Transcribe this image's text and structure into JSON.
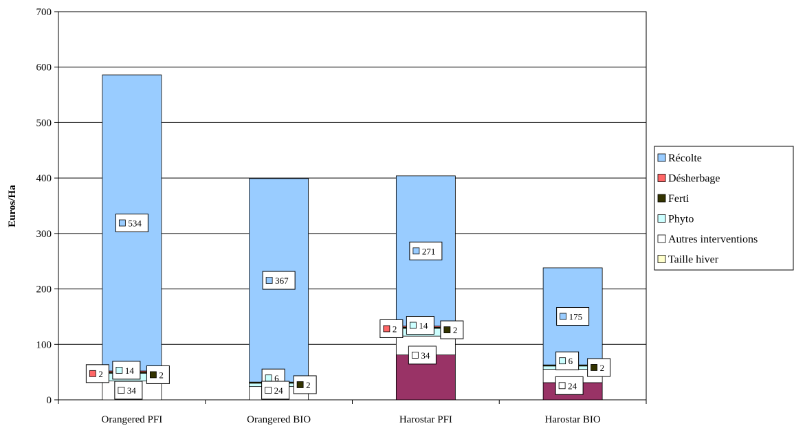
{
  "chart_data": {
    "type": "bar",
    "stacked": true,
    "categories": [
      "Orangered PFI",
      "Orangered BIO",
      "Harostar PFI",
      "Harostar BIO"
    ],
    "ylabel": "Euros/Ha",
    "ylim": [
      0,
      700
    ],
    "yticks": [
      0,
      100,
      200,
      300,
      400,
      500,
      600,
      700
    ],
    "grid": true,
    "legend_position": "right",
    "series": [
      {
        "name": "Taille hiver",
        "color": "#ffffcc",
        "values": [
          0,
          0,
          81,
          31
        ]
      },
      {
        "name": "Autres interventions",
        "color": "#ffffff",
        "values": [
          34,
          24,
          34,
          24
        ]
      },
      {
        "name": "Phyto",
        "color": "#ccffff",
        "values": [
          14,
          6,
          14,
          6
        ]
      },
      {
        "name": "Ferti",
        "color": "#333300",
        "values": [
          2,
          2,
          2,
          2
        ]
      },
      {
        "name": "Désherbage",
        "color": "#ff6666",
        "values": [
          2,
          0,
          2,
          0
        ]
      },
      {
        "name": "Récolte",
        "color": "#99ccff",
        "values": [
          534,
          367,
          271,
          175
        ]
      }
    ],
    "bar_fill_override": {
      "Taille hiver": "#993366"
    },
    "data_labels": [
      {
        "category": "Orangered PFI",
        "series": "Récolte",
        "text": "534"
      },
      {
        "category": "Orangered PFI",
        "series": "Désherbage",
        "text": "2"
      },
      {
        "category": "Orangered PFI",
        "series": "Phyto",
        "text": "14"
      },
      {
        "category": "Orangered PFI",
        "series": "Ferti",
        "text": "2"
      },
      {
        "category": "Orangered PFI",
        "series": "Autres interventions",
        "text": "34"
      },
      {
        "category": "Orangered BIO",
        "series": "Récolte",
        "text": "367"
      },
      {
        "category": "Orangered BIO",
        "series": "Ferti",
        "text": "2"
      },
      {
        "category": "Orangered BIO",
        "series": "Phyto",
        "text": "6"
      },
      {
        "category": "Orangered BIO",
        "series": "Autres interventions",
        "text": "24"
      },
      {
        "category": "Harostar PFI",
        "series": "Récolte",
        "text": "271"
      },
      {
        "category": "Harostar PFI",
        "series": "Désherbage",
        "text": "2"
      },
      {
        "category": "Harostar PFI",
        "series": "Phyto",
        "text": "14"
      },
      {
        "category": "Harostar PFI",
        "series": "Ferti",
        "text": "2"
      },
      {
        "category": "Harostar PFI",
        "series": "Autres interventions",
        "text": "34"
      },
      {
        "category": "Harostar BIO",
        "series": "Récolte",
        "text": "175"
      },
      {
        "category": "Harostar BIO",
        "series": "Ferti",
        "text": "2"
      },
      {
        "category": "Harostar BIO",
        "series": "Phyto",
        "text": "6"
      },
      {
        "category": "Harostar BIO",
        "series": "Autres interventions",
        "text": "24"
      }
    ],
    "legend": [
      {
        "name": "Récolte",
        "color": "#99ccff"
      },
      {
        "name": "Désherbage",
        "color": "#ff6666"
      },
      {
        "name": "Ferti",
        "color": "#333300"
      },
      {
        "name": "Phyto",
        "color": "#ccffff"
      },
      {
        "name": "Autres interventions",
        "color": "#ffffff"
      },
      {
        "name": "Taille hiver",
        "color": "#ffffcc"
      }
    ]
  }
}
